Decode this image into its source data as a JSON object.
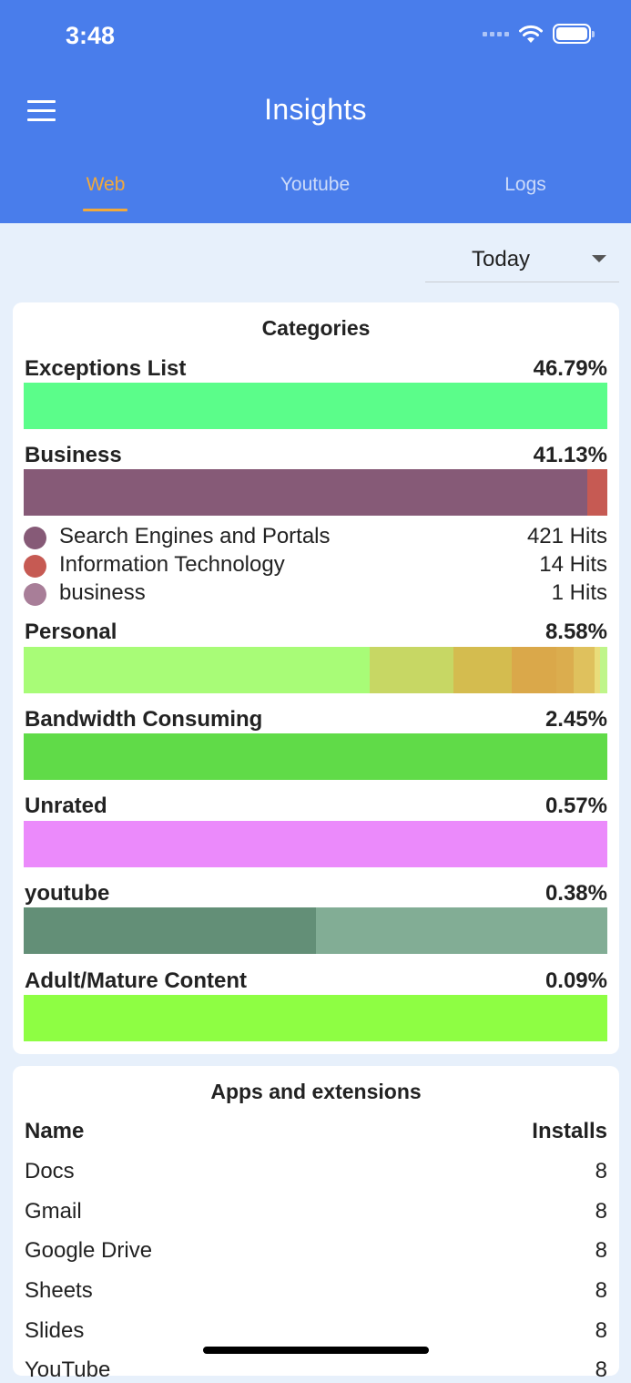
{
  "status": {
    "time": "3:48"
  },
  "appbar": {
    "title": "Insights"
  },
  "tabs": [
    {
      "label": "Web",
      "active": true
    },
    {
      "label": "Youtube",
      "active": false
    },
    {
      "label": "Logs",
      "active": false
    }
  ],
  "filter": {
    "selected": "Today"
  },
  "categories": {
    "title": "Categories",
    "items": [
      {
        "name": "Exceptions List",
        "percent": "46.79%",
        "segments": [
          {
            "color": "#5BFD8A",
            "fraction": 1
          }
        ]
      },
      {
        "name": "Business",
        "percent": "41.13%",
        "segments": [
          {
            "color": "#865A77",
            "fraction": 0.966
          },
          {
            "color": "#C65A53",
            "fraction": 0.034
          }
        ],
        "legend": [
          {
            "label": "Search Engines and Portals",
            "hits": "421 Hits",
            "color": "#865A77"
          },
          {
            "label": "Information Technology",
            "hits": "14 Hits",
            "color": "#C65A53"
          },
          {
            "label": "business",
            "hits": "1 Hits",
            "color": "#A87E98"
          }
        ]
      },
      {
        "name": "Personal",
        "percent": "8.58%",
        "segments": [
          {
            "color": "#A8FC77",
            "fraction": 0.593
          },
          {
            "color": "#C7D764",
            "fraction": 0.143
          },
          {
            "color": "#D4BC4F",
            "fraction": 0.1
          },
          {
            "color": "#DAA84A",
            "fraction": 0.077
          },
          {
            "color": "#DBAD4E",
            "fraction": 0.03
          },
          {
            "color": "#DFC15D",
            "fraction": 0.035
          },
          {
            "color": "#E9DD7A",
            "fraction": 0.01
          },
          {
            "color": "#BFF58A",
            "fraction": 0.012
          }
        ]
      },
      {
        "name": "Bandwidth Consuming",
        "percent": "2.45%",
        "segments": [
          {
            "color": "#60DB48",
            "fraction": 1
          }
        ]
      },
      {
        "name": "Unrated",
        "percent": "0.57%",
        "segments": [
          {
            "color": "#EB8AFB",
            "fraction": 1
          }
        ]
      },
      {
        "name": "youtube",
        "percent": "0.38%",
        "segments": [
          {
            "color": "#638F77",
            "fraction": 0.5
          },
          {
            "color": "#82AD95",
            "fraction": 0.5
          }
        ]
      },
      {
        "name": "Adult/Mature Content",
        "percent": "0.09%",
        "segments": [
          {
            "color": "#8EFE43",
            "fraction": 1
          }
        ]
      }
    ]
  },
  "apps": {
    "title": "Apps and extensions",
    "header": {
      "name": "Name",
      "installs": "Installs"
    },
    "rows": [
      {
        "name": "Docs",
        "installs": "8"
      },
      {
        "name": "Gmail",
        "installs": "8"
      },
      {
        "name": "Google Drive",
        "installs": "8"
      },
      {
        "name": "Sheets",
        "installs": "8"
      },
      {
        "name": "Slides",
        "installs": "8"
      },
      {
        "name": "YouTube",
        "installs": "8"
      }
    ]
  }
}
